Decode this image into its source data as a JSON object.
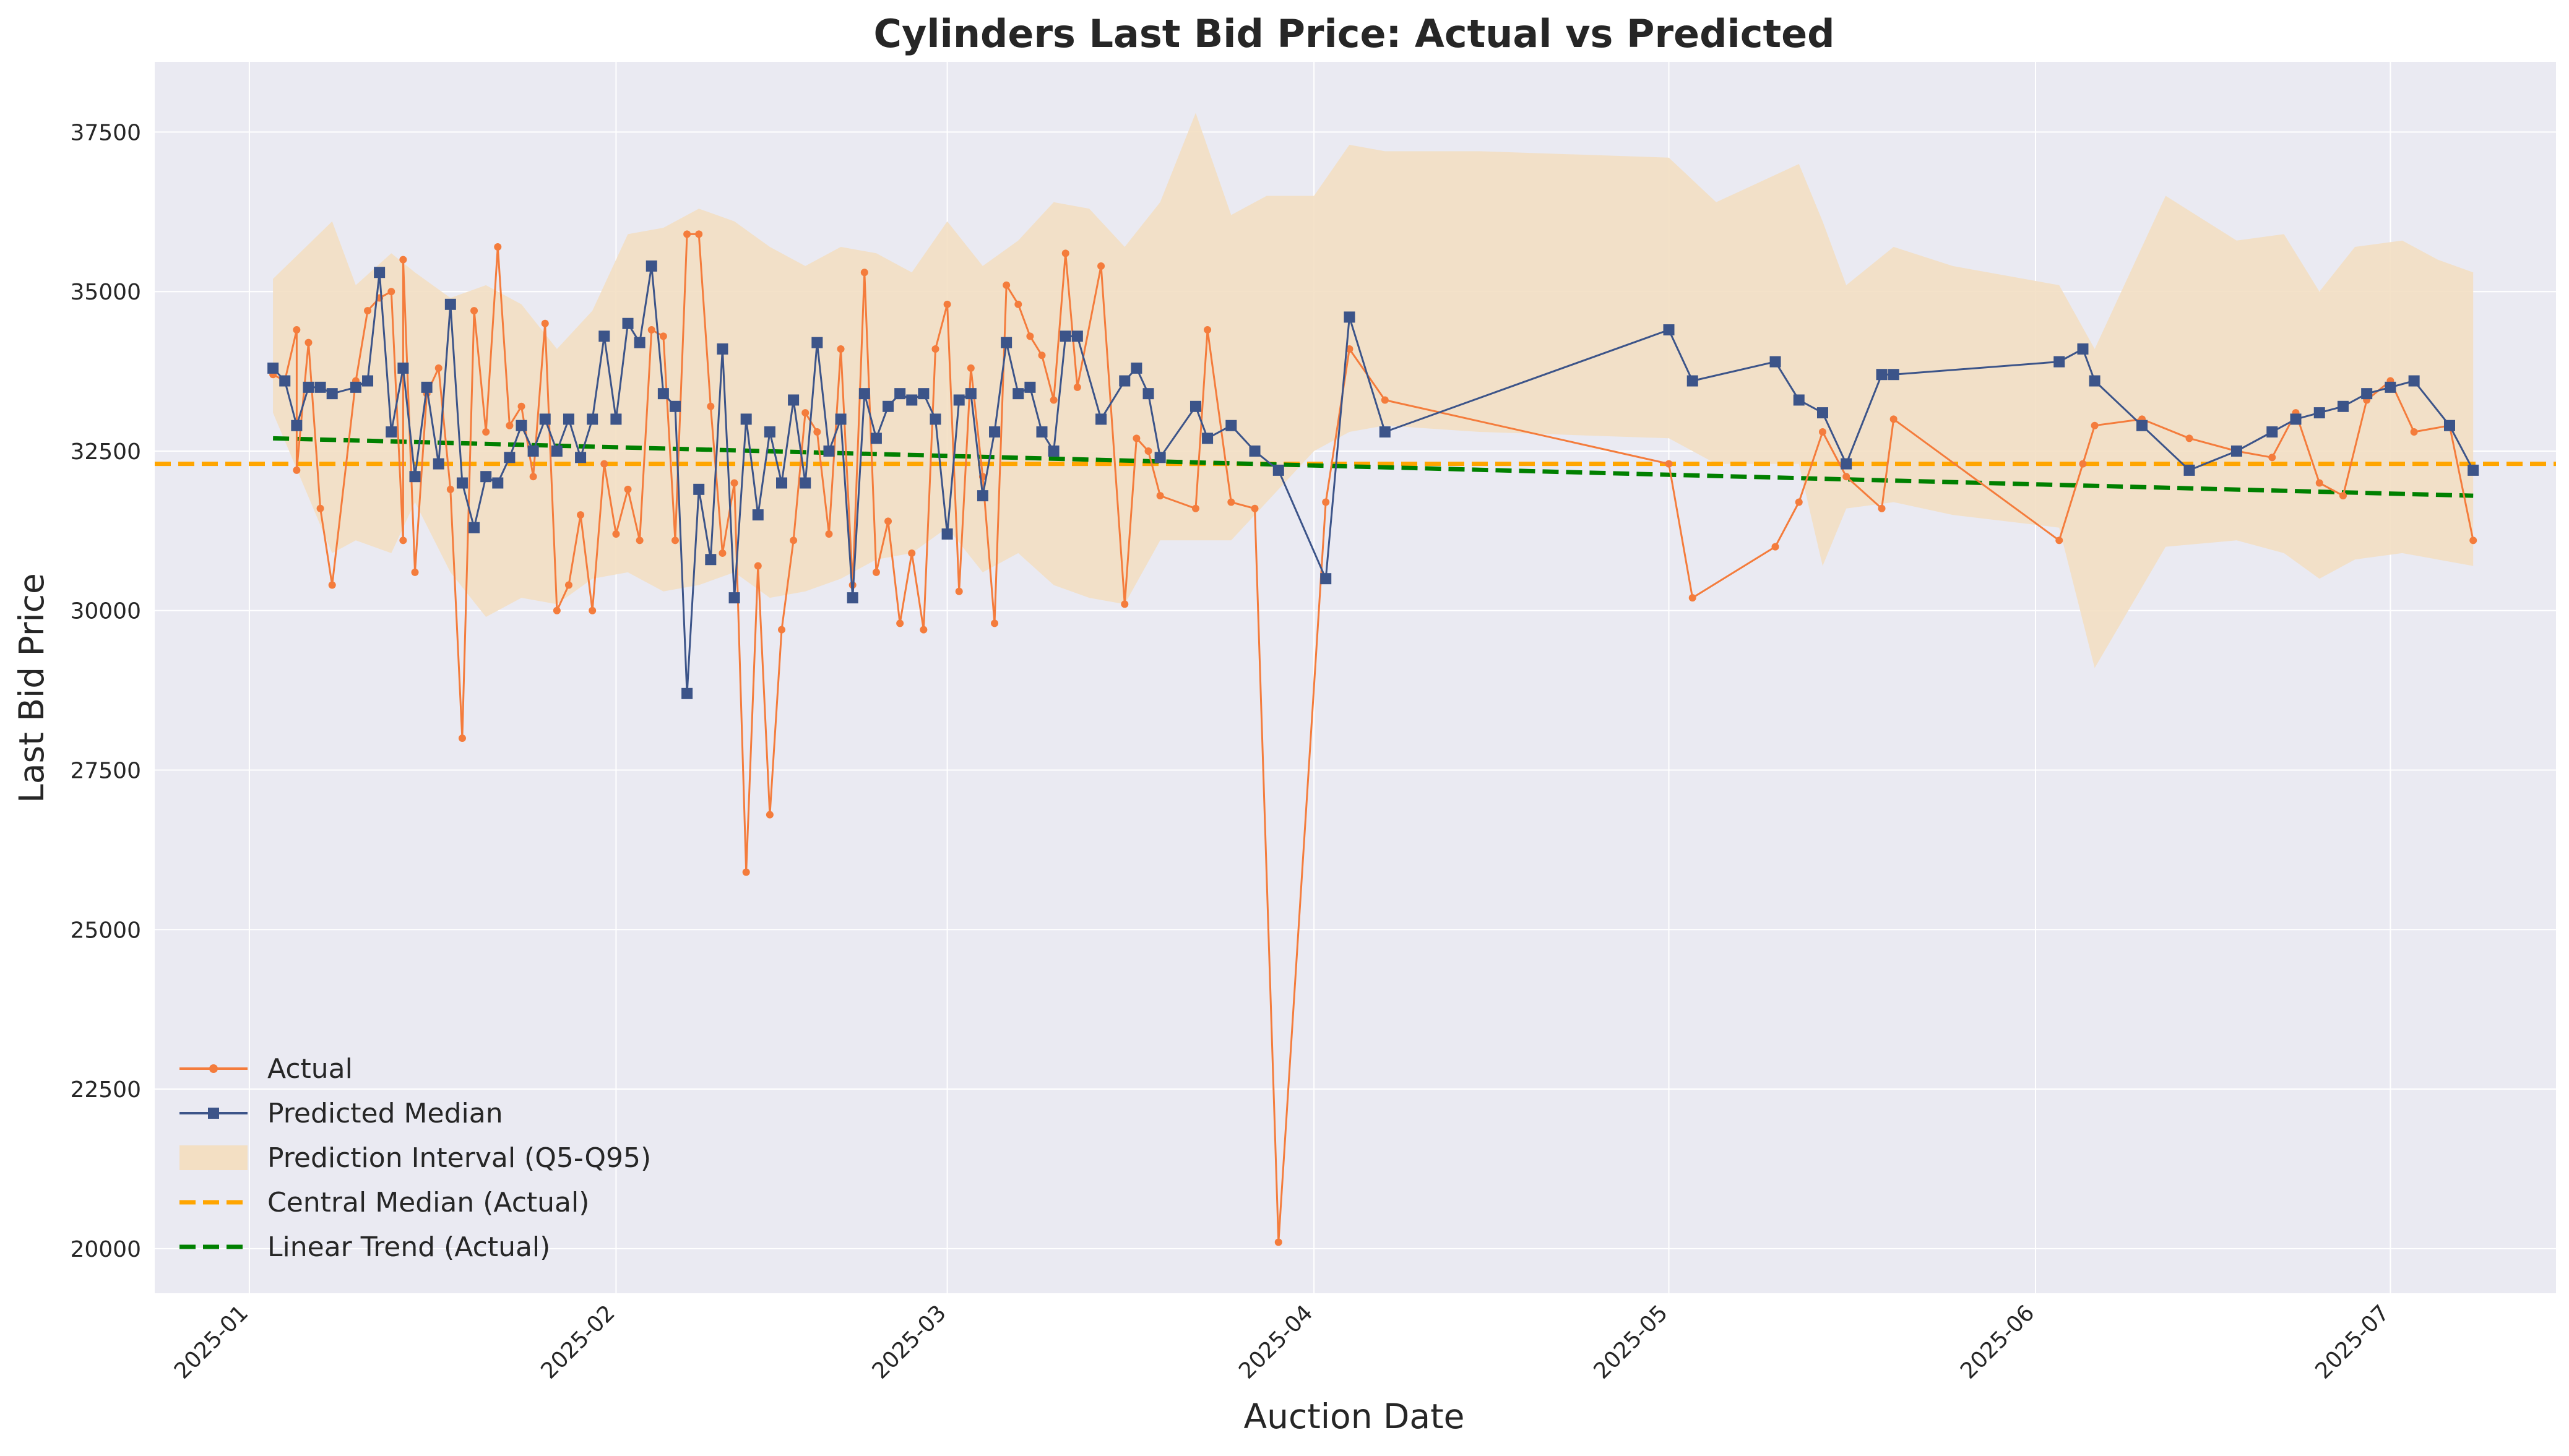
{
  "chart_data": {
    "type": "line",
    "title": "Cylinders Last Bid Price: Actual vs Predicted",
    "xlabel": "Auction Date",
    "ylabel": "Last Bid Price",
    "xlim": [
      "2024-12-24",
      "2025-07-15"
    ],
    "ylim": [
      19300,
      38600
    ],
    "grid": true,
    "legend_position": "lower-left",
    "x_ticks": [
      "2025-01",
      "2025-02",
      "2025-03",
      "2025-04",
      "2025-05",
      "2025-06",
      "2025-07"
    ],
    "y_ticks": [
      "20000",
      "22500",
      "25000",
      "27500",
      "30000",
      "32500",
      "35000",
      "37500"
    ],
    "colors": {
      "actual": "#f47c3c",
      "predicted": "#3c5489",
      "interval": "#f3dfc3",
      "central_median": "#ffa500",
      "trend": "#008000",
      "plot_bg": "#eaeaf2"
    },
    "series": [
      {
        "name": "Actual",
        "style": "line-dot",
        "x": [
          "2025-01-03",
          "2025-01-04",
          "2025-01-05",
          "2025-01-05",
          "2025-01-06",
          "2025-01-07",
          "2025-01-08",
          "2025-01-10",
          "2025-01-11",
          "2025-01-12",
          "2025-01-13",
          "2025-01-14",
          "2025-01-14",
          "2025-01-15",
          "2025-01-16",
          "2025-01-17",
          "2025-01-18",
          "2025-01-19",
          "2025-01-20",
          "2025-01-21",
          "2025-01-22",
          "2025-01-23",
          "2025-01-24",
          "2025-01-25",
          "2025-01-26",
          "2025-01-27",
          "2025-01-28",
          "2025-01-29",
          "2025-01-30",
          "2025-01-31",
          "2025-02-01",
          "2025-02-02",
          "2025-02-03",
          "2025-02-04",
          "2025-02-05",
          "2025-02-06",
          "2025-02-07",
          "2025-02-08",
          "2025-02-09",
          "2025-02-10",
          "2025-02-11",
          "2025-02-12",
          "2025-02-13",
          "2025-02-14",
          "2025-02-15",
          "2025-02-16",
          "2025-02-17",
          "2025-02-18",
          "2025-02-19",
          "2025-02-20",
          "2025-02-21",
          "2025-02-22",
          "2025-02-23",
          "2025-02-24",
          "2025-02-25",
          "2025-02-26",
          "2025-02-27",
          "2025-02-28",
          "2025-03-01",
          "2025-03-02",
          "2025-03-03",
          "2025-03-04",
          "2025-03-05",
          "2025-03-06",
          "2025-03-07",
          "2025-03-08",
          "2025-03-09",
          "2025-03-10",
          "2025-03-11",
          "2025-03-12",
          "2025-03-14",
          "2025-03-16",
          "2025-03-17",
          "2025-03-18",
          "2025-03-19",
          "2025-03-22",
          "2025-03-23",
          "2025-03-25",
          "2025-03-27",
          "2025-03-29",
          "2025-04-02",
          "2025-04-04",
          "2025-04-07",
          "2025-05-01",
          "2025-05-03",
          "2025-05-10",
          "2025-05-12",
          "2025-05-14",
          "2025-05-16",
          "2025-05-19",
          "2025-05-20",
          "2025-06-03",
          "2025-06-05",
          "2025-06-06",
          "2025-06-10",
          "2025-06-14",
          "2025-06-18",
          "2025-06-21",
          "2025-06-23",
          "2025-06-25",
          "2025-06-27",
          "2025-06-29",
          "2025-07-01",
          "2025-07-03",
          "2025-07-06",
          "2025-07-08"
        ],
        "y": [
          33700,
          33600,
          34400,
          32200,
          34200,
          31600,
          30400,
          33600,
          34700,
          34900,
          35000,
          31100,
          35500,
          30600,
          33400,
          33800,
          31900,
          28000,
          34700,
          32800,
          35700,
          32900,
          33200,
          32100,
          34500,
          30000,
          30400,
          31500,
          30000,
          32300,
          31200,
          31900,
          31100,
          34400,
          34300,
          31100,
          35900,
          35900,
          33200,
          30900,
          32000,
          25900,
          30700,
          26800,
          29700,
          31100,
          33100,
          32800,
          31200,
          34100,
          30400,
          35300,
          30600,
          31400,
          29800,
          30900,
          29700,
          34100,
          34800,
          30300,
          33800,
          32100,
          29800,
          35100,
          34800,
          34300,
          34000,
          33300,
          35600,
          33500,
          35400,
          30100,
          32700,
          32500,
          31800,
          31600,
          34400,
          31700,
          31600,
          20100,
          31700,
          34100,
          33300,
          32300,
          30200,
          31000,
          31700,
          32800,
          32100,
          31600,
          33000,
          31100,
          32300,
          32900,
          33000,
          32700,
          32500,
          32400,
          33100,
          32000,
          31800,
          33300,
          33600,
          32800,
          32900,
          31100
        ]
      },
      {
        "name": "Predicted Median",
        "style": "line-square",
        "x": [
          "2025-01-03",
          "2025-01-04",
          "2025-01-05",
          "2025-01-06",
          "2025-01-07",
          "2025-01-08",
          "2025-01-10",
          "2025-01-11",
          "2025-01-12",
          "2025-01-13",
          "2025-01-14",
          "2025-01-15",
          "2025-01-16",
          "2025-01-17",
          "2025-01-18",
          "2025-01-19",
          "2025-01-20",
          "2025-01-21",
          "2025-01-22",
          "2025-01-23",
          "2025-01-24",
          "2025-01-25",
          "2025-01-26",
          "2025-01-27",
          "2025-01-28",
          "2025-01-29",
          "2025-01-30",
          "2025-01-31",
          "2025-02-01",
          "2025-02-02",
          "2025-02-03",
          "2025-02-04",
          "2025-02-05",
          "2025-02-06",
          "2025-02-07",
          "2025-02-08",
          "2025-02-09",
          "2025-02-10",
          "2025-02-11",
          "2025-02-12",
          "2025-02-13",
          "2025-02-14",
          "2025-02-15",
          "2025-02-16",
          "2025-02-17",
          "2025-02-18",
          "2025-02-19",
          "2025-02-20",
          "2025-02-21",
          "2025-02-22",
          "2025-02-23",
          "2025-02-24",
          "2025-02-25",
          "2025-02-26",
          "2025-02-27",
          "2025-02-28",
          "2025-03-01",
          "2025-03-02",
          "2025-03-03",
          "2025-03-04",
          "2025-03-05",
          "2025-03-06",
          "2025-03-07",
          "2025-03-08",
          "2025-03-09",
          "2025-03-10",
          "2025-03-11",
          "2025-03-12",
          "2025-03-14",
          "2025-03-16",
          "2025-03-17",
          "2025-03-18",
          "2025-03-19",
          "2025-03-22",
          "2025-03-23",
          "2025-03-25",
          "2025-03-27",
          "2025-03-29",
          "2025-04-02",
          "2025-04-04",
          "2025-04-07",
          "2025-05-01",
          "2025-05-03",
          "2025-05-10",
          "2025-05-12",
          "2025-05-14",
          "2025-05-16",
          "2025-05-19",
          "2025-05-20",
          "2025-06-03",
          "2025-06-05",
          "2025-06-06",
          "2025-06-10",
          "2025-06-14",
          "2025-06-18",
          "2025-06-21",
          "2025-06-23",
          "2025-06-25",
          "2025-06-27",
          "2025-06-29",
          "2025-07-01",
          "2025-07-03",
          "2025-07-06",
          "2025-07-08"
        ],
        "y": [
          33800,
          33600,
          32900,
          33500,
          33500,
          33400,
          33500,
          33600,
          35300,
          32800,
          33800,
          32100,
          33500,
          32300,
          34800,
          32000,
          31300,
          32100,
          32000,
          32400,
          32900,
          32500,
          33000,
          32500,
          33000,
          32400,
          33000,
          34300,
          33000,
          34500,
          34200,
          35400,
          33400,
          33200,
          28700,
          31900,
          30800,
          34100,
          30200,
          33000,
          31500,
          32800,
          32000,
          33300,
          32000,
          34200,
          32500,
          33000,
          30200,
          33400,
          32700,
          33200,
          33400,
          33300,
          33400,
          33000,
          31200,
          33300,
          33400,
          31800,
          32800,
          34200,
          33400,
          33500,
          32800,
          32500,
          34300,
          34300,
          33000,
          33600,
          33800,
          33400,
          32400,
          33200,
          32700,
          32900,
          32500,
          32200,
          30500,
          34600,
          32800,
          34400,
          33600,
          33900,
          33300,
          33100,
          32300,
          33700,
          33700,
          33900,
          34100,
          33600,
          32900,
          32200,
          32500,
          32800,
          33000,
          33100,
          33200,
          33400,
          33500,
          33600,
          32900,
          32200
        ]
      }
    ],
    "interval": {
      "name": "Prediction Interval (Q5-Q95)",
      "x": [
        "2025-01-03",
        "2025-01-08",
        "2025-01-10",
        "2025-01-13",
        "2025-01-15",
        "2025-01-18",
        "2025-01-21",
        "2025-01-24",
        "2025-01-27",
        "2025-01-30",
        "2025-02-02",
        "2025-02-05",
        "2025-02-08",
        "2025-02-11",
        "2025-02-14",
        "2025-02-17",
        "2025-02-20",
        "2025-02-23",
        "2025-02-26",
        "2025-03-01",
        "2025-03-04",
        "2025-03-07",
        "2025-03-10",
        "2025-03-13",
        "2025-03-16",
        "2025-03-19",
        "2025-03-22",
        "2025-03-25",
        "2025-03-28",
        "2025-04-01",
        "2025-04-04",
        "2025-04-07",
        "2025-04-15",
        "2025-05-01",
        "2025-05-05",
        "2025-05-12",
        "2025-05-14",
        "2025-05-16",
        "2025-05-20",
        "2025-05-25",
        "2025-06-03",
        "2025-06-06",
        "2025-06-12",
        "2025-06-18",
        "2025-06-22",
        "2025-06-25",
        "2025-06-28",
        "2025-07-02",
        "2025-07-05",
        "2025-07-08"
      ],
      "upper": [
        35200,
        36100,
        35100,
        35600,
        35300,
        34900,
        35100,
        34800,
        34100,
        34700,
        35900,
        36000,
        36300,
        36100,
        35700,
        35400,
        35700,
        35600,
        35300,
        36100,
        35400,
        35800,
        36400,
        36300,
        35700,
        36400,
        37800,
        36200,
        36500,
        36500,
        37300,
        37200,
        37200,
        37100,
        36400,
        37000,
        36100,
        35100,
        35700,
        35400,
        35100,
        34100,
        36500,
        35800,
        35900,
        35000,
        35700,
        35800,
        35500,
        35300
      ],
      "lower": [
        33100,
        30900,
        31100,
        30900,
        31700,
        30600,
        29900,
        30200,
        30100,
        30500,
        30600,
        30300,
        30400,
        30600,
        30200,
        30300,
        30500,
        30800,
        30900,
        31300,
        30600,
        30900,
        30400,
        30200,
        30100,
        31100,
        31100,
        31100,
        31700,
        32500,
        32800,
        32900,
        32800,
        32700,
        32300,
        32300,
        30700,
        31600,
        31700,
        31500,
        31300,
        29100,
        31000,
        31100,
        30900,
        30500,
        30800,
        30900,
        30800,
        30700
      ]
    },
    "central_median": {
      "name": "Central Median (Actual)",
      "value": 32300
    },
    "linear_trend": {
      "name": "Linear Trend (Actual)",
      "x": [
        "2025-01-03",
        "2025-07-08"
      ],
      "y": [
        32700,
        31800
      ]
    }
  }
}
